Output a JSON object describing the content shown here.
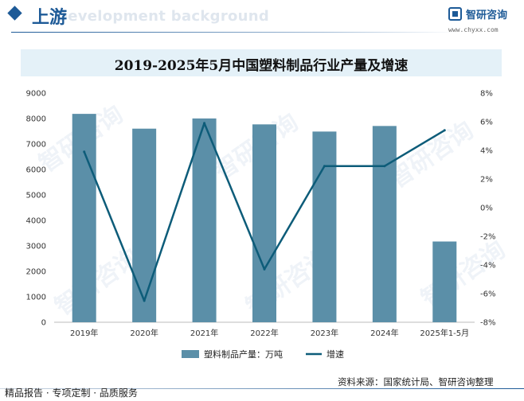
{
  "header": {
    "section_title": "上游",
    "bg_text": "Development background",
    "brand_name": "智研咨询",
    "brand_url": "www.chyxx.com"
  },
  "footer": {
    "left": "精品报告 · 专项定制 · 品质服务",
    "source": "资料来源：国家统计局、智研咨询整理",
    "watermark_text": "智研咨询"
  },
  "colors": {
    "bar": "#5b8fa8",
    "line": "#0d5c79",
    "brand": "#1d5a97"
  },
  "chart_data": {
    "type": "bar",
    "title": "2019-2025年5月中国塑料制品行业产量及增速",
    "categories": [
      "2019年",
      "2020年",
      "2021年",
      "2022年",
      "2023年",
      "2024年",
      "2025年1-5月"
    ],
    "series": [
      {
        "name": "塑料制品产量：万吨",
        "type": "bar",
        "axis": "left",
        "values": [
          8184,
          7603,
          8004,
          7771,
          7489,
          7708,
          3171
        ]
      },
      {
        "name": "增速",
        "type": "line",
        "axis": "right",
        "values": [
          3.9,
          -6.5,
          5.9,
          -4.3,
          2.9,
          2.9,
          5.4
        ]
      }
    ],
    "ylim_left": [
      0,
      9000
    ],
    "yticks_left": [
      0,
      1000,
      2000,
      3000,
      4000,
      5000,
      6000,
      7000,
      8000,
      9000
    ],
    "ylim_right": [
      -8,
      8
    ],
    "yticks_right": [
      "-8%",
      "-6%",
      "-4%",
      "-2%",
      "0%",
      "2%",
      "4%",
      "6%",
      "8%"
    ],
    "legend": [
      "塑料制品产量：万吨",
      "增速"
    ],
    "legend_position": "bottom-center"
  }
}
